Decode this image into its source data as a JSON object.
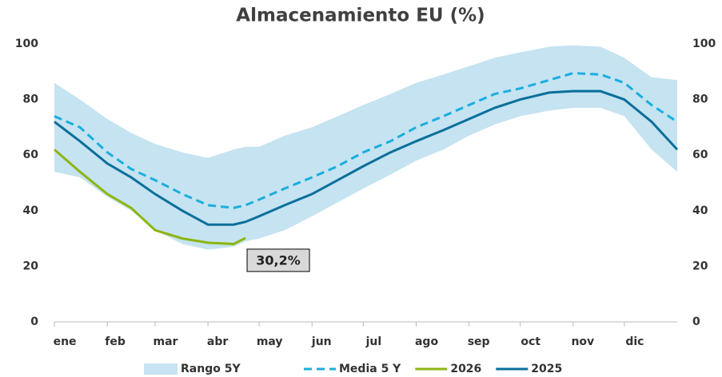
{
  "chart_data": {
    "type": "line",
    "title": "Almacenamiento EU (%)",
    "x": [
      0,
      15,
      31,
      45,
      59,
      75,
      90,
      105,
      112,
      120,
      135,
      151,
      166,
      181,
      197,
      212,
      228,
      243,
      258,
      273,
      290,
      304,
      320,
      334,
      350,
      365
    ],
    "xlim": [
      0,
      365
    ],
    "xticks": [
      {
        "value": 0,
        "label": "ene"
      },
      {
        "value": 31,
        "label": "feb"
      },
      {
        "value": 59,
        "label": "mar"
      },
      {
        "value": 90,
        "label": "abr"
      },
      {
        "value": 120,
        "label": "may"
      },
      {
        "value": 151,
        "label": "jun"
      },
      {
        "value": 181,
        "label": "jul"
      },
      {
        "value": 212,
        "label": "ago"
      },
      {
        "value": 243,
        "label": "sep"
      },
      {
        "value": 273,
        "label": "oct"
      },
      {
        "value": 304,
        "label": "nov"
      },
      {
        "value": 334,
        "label": "dic"
      }
    ],
    "ylim": [
      0,
      100
    ],
    "yticks": [
      0,
      20,
      40,
      60,
      80,
      100
    ],
    "y2lim": [
      0,
      100
    ],
    "y2ticks": [
      0,
      20,
      40,
      60,
      80,
      100
    ],
    "range": {
      "name": "Rango 5Y",
      "color": "#c5e3f1",
      "low": [
        54,
        52,
        45,
        40,
        33,
        28,
        26,
        27,
        29,
        30,
        33,
        38,
        43,
        48,
        53,
        58,
        62,
        67,
        71,
        74,
        76,
        77,
        77,
        74,
        62,
        54
      ],
      "high": [
        86,
        80,
        73,
        68,
        64,
        61,
        59,
        62,
        63,
        63,
        67,
        70,
        74,
        78,
        82,
        86,
        89,
        92,
        95,
        97,
        99,
        99.5,
        99,
        95,
        88,
        87
      ]
    },
    "series": [
      {
        "name": "Media 5 Y",
        "color": "#1aaede",
        "dash": true,
        "values": [
          74,
          70,
          61,
          55,
          51,
          46,
          42,
          41,
          42,
          44,
          48,
          52,
          56,
          61,
          65,
          70,
          74,
          78,
          82,
          84,
          87,
          89.5,
          89,
          86,
          78,
          72
        ]
      },
      {
        "name": "2026",
        "color": "#8db512",
        "values": [
          62,
          54,
          46,
          41,
          33,
          30,
          28.5,
          28,
          30.2,
          null,
          null,
          null,
          null,
          null,
          null,
          null,
          null,
          null,
          null,
          null,
          null,
          null,
          null,
          null,
          null,
          null
        ],
        "value_labels": [
          null,
          null,
          null,
          null,
          null,
          null,
          null,
          null,
          "30,2%",
          null,
          null,
          null,
          null,
          null,
          null,
          null,
          null,
          null,
          null,
          null,
          null,
          null,
          null,
          null,
          null,
          null
        ]
      },
      {
        "name": "2025",
        "color": "#0a6f9b",
        "values": [
          72,
          65,
          57,
          52,
          46,
          40,
          35,
          35,
          36,
          38,
          42,
          46,
          51,
          56,
          61,
          65,
          69,
          73,
          77,
          80,
          82.5,
          83,
          83,
          80,
          72,
          62
        ]
      }
    ]
  }
}
